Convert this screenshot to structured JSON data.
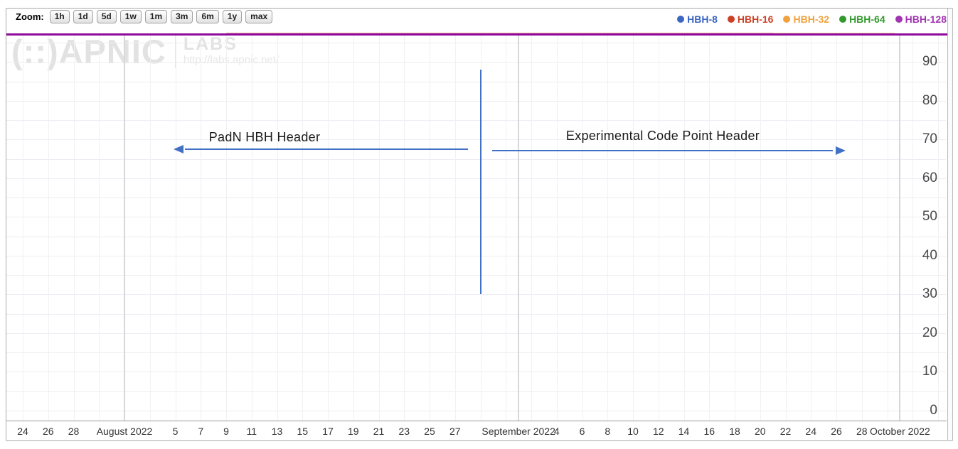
{
  "toolbar": {
    "zoom_label": "Zoom:",
    "buttons": [
      "1h",
      "1d",
      "5d",
      "1w",
      "1m",
      "3m",
      "6m",
      "1y",
      "max"
    ]
  },
  "legend": [
    {
      "label": "HBH-8",
      "color": "#3b66c4"
    },
    {
      "label": "HBH-16",
      "color": "#cc4125"
    },
    {
      "label": "HBH-32",
      "color": "#f1a23c"
    },
    {
      "label": "HBH-64",
      "color": "#33992e"
    },
    {
      "label": "HBH-128",
      "color": "#a134b1"
    }
  ],
  "watermark": {
    "brand": "(::)APNIC",
    "labs": "LABS",
    "url": "http://labs.apnic.net/"
  },
  "annotations": {
    "left_label": "PadN HBH Header",
    "right_label": "Experimental Code Point Header"
  },
  "colors": {
    "accent_blue": "#4170c4",
    "hbh128_line": "#8f0a9c",
    "grid_h": "#ededf4",
    "grid_v": "#f1f1f1",
    "grid_month": "#d7d7d7",
    "axis": "#9a9a9a"
  },
  "chart_data": {
    "type": "line",
    "title": "",
    "x_axis": {
      "unit": "day",
      "range": "2022-07-24 to 2022-10-04",
      "gridline_every_days": 2,
      "ticks": [
        {
          "label": "24",
          "day": 0
        },
        {
          "label": "26",
          "day": 2
        },
        {
          "label": "28",
          "day": 4
        },
        {
          "label": "August 2022",
          "day": 8,
          "month": true
        },
        {
          "label": "5",
          "day": 12
        },
        {
          "label": "7",
          "day": 14
        },
        {
          "label": "9",
          "day": 16
        },
        {
          "label": "11",
          "day": 18
        },
        {
          "label": "13",
          "day": 20
        },
        {
          "label": "15",
          "day": 22
        },
        {
          "label": "17",
          "day": 24
        },
        {
          "label": "19",
          "day": 26
        },
        {
          "label": "21",
          "day": 28
        },
        {
          "label": "23",
          "day": 30
        },
        {
          "label": "25",
          "day": 32
        },
        {
          "label": "27",
          "day": 34
        },
        {
          "label": "September 2022",
          "day": 39,
          "month": true
        },
        {
          "label": "4",
          "day": 42
        },
        {
          "label": "6",
          "day": 44
        },
        {
          "label": "8",
          "day": 46
        },
        {
          "label": "10",
          "day": 48
        },
        {
          "label": "12",
          "day": 50
        },
        {
          "label": "14",
          "day": 52
        },
        {
          "label": "16",
          "day": 54
        },
        {
          "label": "18",
          "day": 56
        },
        {
          "label": "20",
          "day": 58
        },
        {
          "label": "22",
          "day": 60
        },
        {
          "label": "24",
          "day": 62
        },
        {
          "label": "26",
          "day": 64
        },
        {
          "label": "28",
          "day": 66
        },
        {
          "label": "October 2022",
          "day": 69,
          "month": true
        }
      ]
    },
    "y_axis": {
      "min": 0,
      "max": 97,
      "tick_interval": 10,
      "minor_gridline_interval": 5,
      "ticks": [
        0,
        10,
        20,
        30,
        40,
        50,
        60,
        70,
        80,
        90
      ],
      "position": "right"
    },
    "series": [
      {
        "name": "HBH-8",
        "color": "#3b66c4",
        "visible": false
      },
      {
        "name": "HBH-16",
        "color": "#cc4125",
        "value": 97.5,
        "day_start": 16,
        "day_end": 59,
        "stroke": 1,
        "faint": true
      },
      {
        "name": "HBH-32",
        "color": "#f1a23c",
        "value": 97.5,
        "day_start": 59,
        "day_end": 68.6,
        "stroke": 1,
        "faint": true
      },
      {
        "name": "HBH-64",
        "color": "#33992e",
        "visible": false
      },
      {
        "name": "HBH-128",
        "color": "#8f0a9c",
        "value": 97.2,
        "day_start": -1.3,
        "day_end": 73.1,
        "stroke": 3,
        "note": "flat line pinned along the top of the plot (~97%) for the whole range"
      }
    ],
    "annotations": {
      "vline": {
        "day": 36,
        "date": "2022-08-29",
        "v_from": 30,
        "v_to": 88,
        "color": "#4170c4"
      },
      "arrows": [
        {
          "dir": "left",
          "day_tip": 12.2,
          "day_tail": 35.0,
          "value": 67.5,
          "label": "PadN HBH Header"
        },
        {
          "dir": "right",
          "day_tip": 64.3,
          "day_tail": 36.9,
          "value": 67.2,
          "label": "Experimental Code Point Header"
        }
      ]
    }
  }
}
